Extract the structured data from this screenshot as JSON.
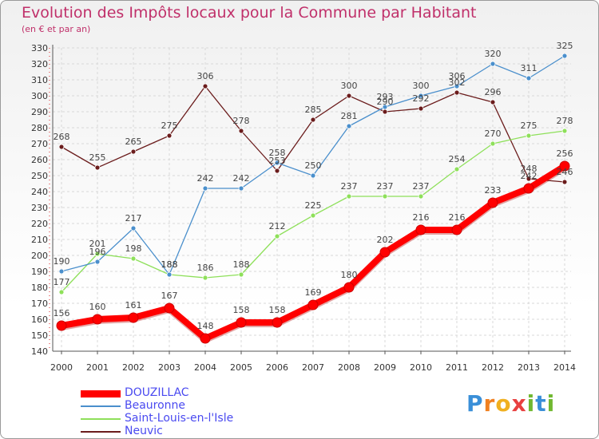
{
  "title": "Evolution des Impôts locaux pour la Commune par Habitant",
  "subtitle": "(en € et par an)",
  "logo": {
    "text": "Proxiti",
    "letters": [
      {
        "ch": "P",
        "color": "#3a8fd8"
      },
      {
        "ch": "r",
        "color": "#f08020"
      },
      {
        "ch": "o",
        "color": "#f0b020"
      },
      {
        "ch": "x",
        "color": "#e84040"
      },
      {
        "ch": "i",
        "color": "#70b830"
      },
      {
        "ch": "t",
        "color": "#3a8fd8"
      },
      {
        "ch": "i",
        "color": "#70b830"
      }
    ]
  },
  "chart_data": {
    "type": "line",
    "title": "Evolution des Impôts locaux pour la Commune par Habitant",
    "subtitle": "(en € et par an)",
    "xlabel": "",
    "ylabel": "",
    "ylim": [
      140,
      330
    ],
    "y_ticks": [
      140,
      150,
      160,
      170,
      180,
      190,
      200,
      210,
      220,
      230,
      240,
      250,
      260,
      270,
      280,
      290,
      300,
      310,
      320,
      330
    ],
    "x": [
      "2000",
      "2001",
      "2002",
      "2003",
      "2004",
      "2005",
      "2006",
      "2007",
      "2008",
      "2009",
      "2010",
      "2011",
      "2012",
      "2013",
      "2014"
    ],
    "grid": true,
    "legend_position": "bottom-left",
    "series": [
      {
        "name": "DOUZILLAC",
        "color": "#ff0000",
        "emphasis": true,
        "values": [
          156,
          160,
          161,
          167,
          148,
          158,
          158,
          169,
          180,
          202,
          216,
          216,
          233,
          242,
          256
        ]
      },
      {
        "name": "Beauronne",
        "color": "#4a8fcc",
        "values": [
          190,
          196,
          217,
          188,
          242,
          242,
          258,
          250,
          281,
          293,
          300,
          306,
          320,
          311,
          325
        ]
      },
      {
        "name": "Saint-Louis-en-l'Isle",
        "color": "#8ee05a",
        "values": [
          177,
          201,
          198,
          188,
          186,
          188,
          212,
          225,
          237,
          237,
          237,
          254,
          270,
          275,
          278
        ]
      },
      {
        "name": "Neuvic",
        "color": "#6b1c1c",
        "values": [
          268,
          255,
          265,
          275,
          306,
          278,
          253,
          285,
          300,
          290,
          292,
          302,
          296,
          248,
          246
        ]
      }
    ]
  }
}
